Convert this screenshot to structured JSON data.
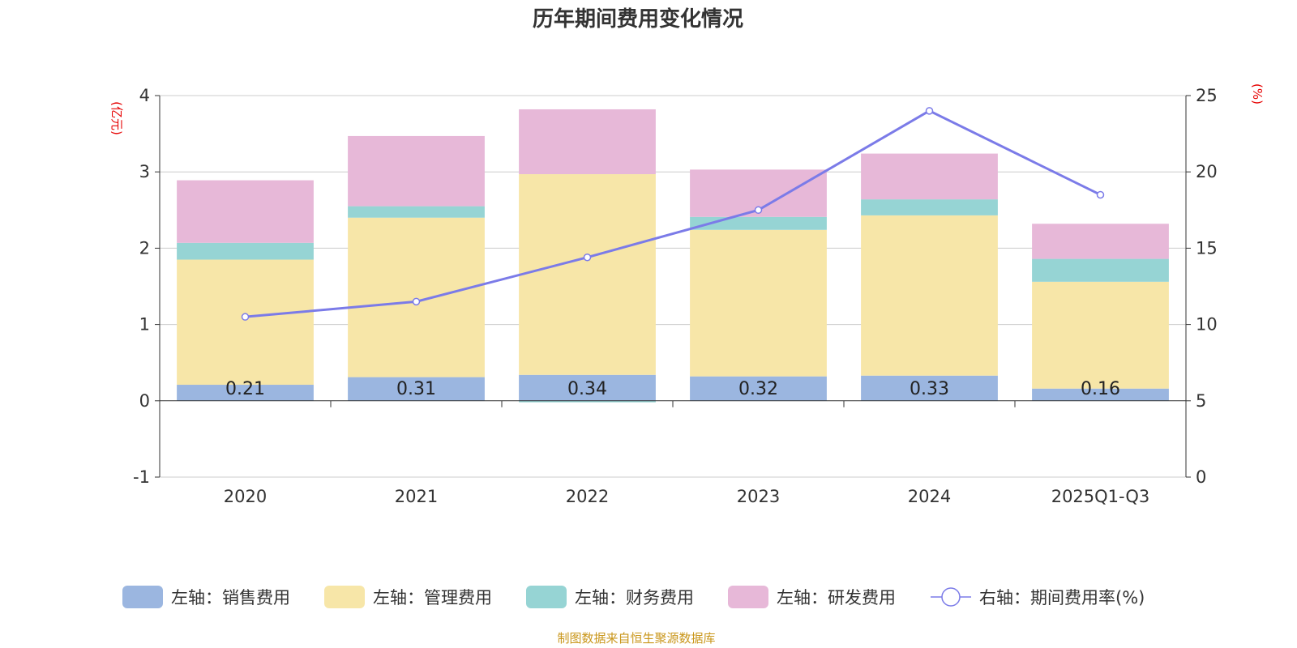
{
  "chart_data": {
    "type": "bar",
    "stacked": true,
    "title": "历年期间费用变化情况",
    "categories": [
      "2020",
      "2021",
      "2022",
      "2023",
      "2024",
      "2025Q1-Q3"
    ],
    "left_axis": {
      "unit": "(亿元)",
      "range": [
        -1,
        4
      ],
      "ticks": [
        "-1",
        "0",
        "1",
        "2",
        "3",
        "4"
      ]
    },
    "right_axis": {
      "unit": "(%)",
      "range": [
        0,
        25
      ],
      "ticks": [
        "0",
        "5",
        "10",
        "15",
        "20",
        "25"
      ]
    },
    "series": [
      {
        "name": "左轴：销售费用",
        "axis": "left",
        "type": "bar",
        "color": "#9bb6e0",
        "values": [
          0.21,
          0.31,
          0.34,
          0.32,
          0.33,
          0.16
        ],
        "labels": [
          "0.21",
          "0.31",
          "0.34",
          "0.32",
          "0.33",
          "0.16"
        ]
      },
      {
        "name": "左轴：管理费用",
        "axis": "left",
        "type": "bar",
        "color": "#f7e6a8",
        "values": [
          1.64,
          2.09,
          2.63,
          1.92,
          2.1,
          1.4
        ]
      },
      {
        "name": "左轴：财务费用",
        "axis": "left",
        "type": "bar",
        "color": "#96d4d4",
        "values": [
          0.22,
          0.15,
          -0.02,
          0.17,
          0.21,
          0.3
        ]
      },
      {
        "name": "左轴：研发费用",
        "axis": "left",
        "type": "bar",
        "color": "#e7b8d8",
        "values": [
          0.82,
          0.92,
          0.85,
          0.62,
          0.6,
          0.46
        ]
      },
      {
        "name": "右轴：期间费用率(%)",
        "axis": "right",
        "type": "line",
        "color": "#7b7be8",
        "values": [
          10.5,
          11.5,
          14.4,
          17.5,
          24.0,
          18.5
        ]
      }
    ],
    "grid": true,
    "legend_position": "bottom"
  },
  "source": "制图数据来自恒生聚源数据库"
}
